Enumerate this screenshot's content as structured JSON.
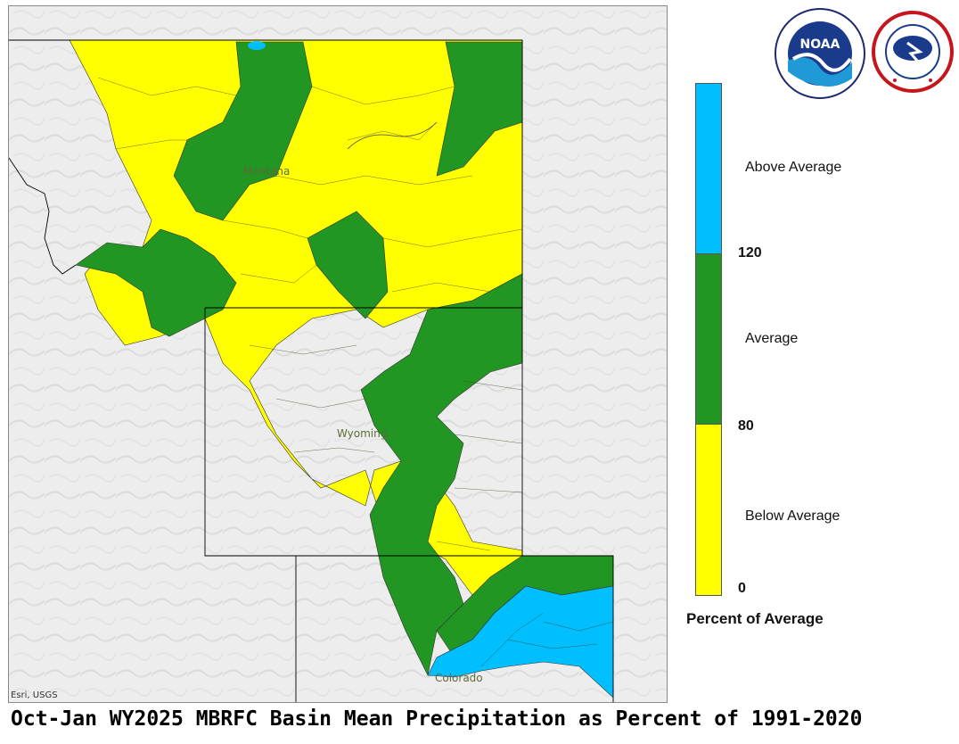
{
  "map": {
    "state_labels": [
      "Montana",
      "Wyoming",
      "Colorado"
    ],
    "attribution": "Esri, USGS",
    "basemap_color": "#ededed"
  },
  "legend": {
    "categories": [
      {
        "label": "Above Average",
        "color": "#00bfff"
      },
      {
        "label": "Average",
        "color": "#229622"
      },
      {
        "label": "Below Average",
        "color": "#ffff00"
      }
    ],
    "ticks": [
      "120",
      "80",
      "0"
    ],
    "title": "Percent of Average"
  },
  "logos": {
    "noaa": {
      "text": "NOAA",
      "ring_text": "NATIONAL OCEANIC AND ATMOSPHERIC ADMINISTRATION",
      "bottom_text": "U.S. DEPARTMENT OF COMMERCE",
      "name": "noaa-logo"
    },
    "nws": {
      "ring_text": "NATIONAL WEATHER SERVICE",
      "name": "nws-logo"
    }
  },
  "footer": {
    "title": "Oct-Jan WY2025 MBRFC Basin Mean Precipitation as Percent of 1991-2020"
  }
}
